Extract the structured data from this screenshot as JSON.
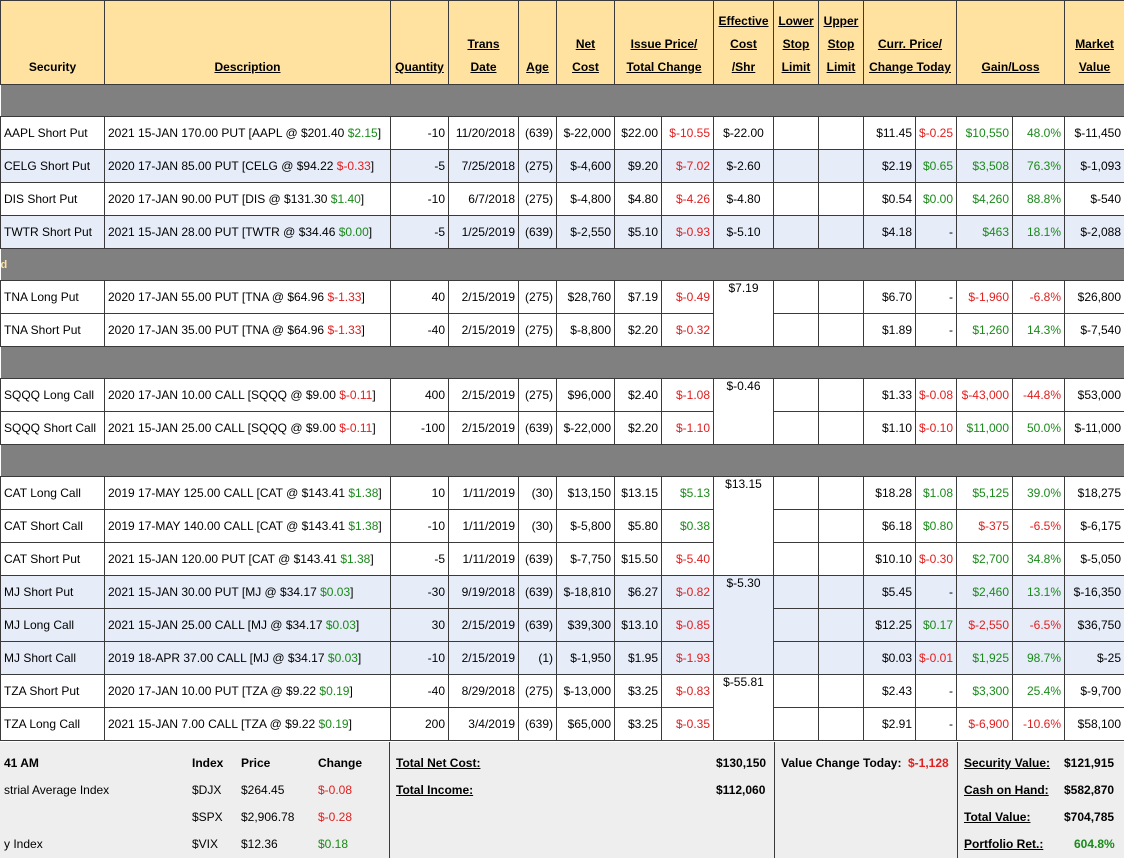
{
  "headers": {
    "security": "Security",
    "description": "Description",
    "quantity": "Quantity",
    "trans_date": [
      "Trans",
      "Date"
    ],
    "age": "Age",
    "net_cost": [
      "Net",
      "Cost"
    ],
    "issue_price": [
      "Issue Price/",
      "Total Change"
    ],
    "effective_cost": [
      "Effective",
      "Cost",
      "/Shr"
    ],
    "lower_stop": [
      "Lower",
      "Stop",
      "Limit"
    ],
    "upper_stop": [
      "Upper",
      "Stop",
      "Limit"
    ],
    "curr_price": [
      "Curr. Price/",
      "Change Today"
    ],
    "gain_loss": "Gain/Loss",
    "market_value": [
      "Market",
      "Value"
    ]
  },
  "separators": [
    "",
    "d",
    "",
    ""
  ],
  "rows": [
    {
      "security": "AAPL Short Put",
      "desc": "2021 15-JAN 170.00 PUT [AAPL @ $201.40",
      "desc_chg": "$2.15",
      "desc_chg_cls": "pos",
      "qty": "-10",
      "date": "11/20/2018",
      "age": "(639)",
      "net": "$-22,000",
      "issue": "$22.00",
      "tchg": "$-10.55",
      "tchg_cls": "neg",
      "eff": "$-22.00",
      "curr": "$11.45",
      "today": "$-0.25",
      "today_cls": "neg",
      "gl": "$10,550",
      "gl_cls": "pos",
      "glpct": "48.0%",
      "glpct_cls": "pos",
      "mv": "$-11,450",
      "alt": false
    },
    {
      "security": "CELG Short Put",
      "desc": "2020 17-JAN 85.00 PUT [CELG @ $94.22",
      "desc_chg": "$-0.33",
      "desc_chg_cls": "neg",
      "qty": "-5",
      "date": "7/25/2018",
      "age": "(275)",
      "net": "$-4,600",
      "issue": "$9.20",
      "tchg": "$-7.02",
      "tchg_cls": "neg",
      "eff": "$-2.60",
      "curr": "$2.19",
      "today": "$0.65",
      "today_cls": "pos",
      "gl": "$3,508",
      "gl_cls": "pos",
      "glpct": "76.3%",
      "glpct_cls": "pos",
      "mv": "$-1,093",
      "alt": true
    },
    {
      "security": "DIS Short Put",
      "desc": "2020 17-JAN 90.00 PUT [DIS @ $131.30",
      "desc_chg": "$1.40",
      "desc_chg_cls": "pos",
      "qty": "-10",
      "date": "6/7/2018",
      "age": "(275)",
      "net": "$-4,800",
      "issue": "$4.80",
      "tchg": "$-4.26",
      "tchg_cls": "neg",
      "eff": "$-4.80",
      "curr": "$0.54",
      "today": "$0.00",
      "today_cls": "pos",
      "gl": "$4,260",
      "gl_cls": "pos",
      "glpct": "88.8%",
      "glpct_cls": "pos",
      "mv": "$-540",
      "alt": false
    },
    {
      "security": "TWTR Short Put",
      "desc": "2021 15-JAN 28.00 PUT [TWTR @ $34.46",
      "desc_chg": "$0.00",
      "desc_chg_cls": "pos",
      "qty": "-5",
      "date": "1/25/2019",
      "age": "(639)",
      "net": "$-2,550",
      "issue": "$5.10",
      "tchg": "$-0.93",
      "tchg_cls": "neg",
      "eff": "$-5.10",
      "curr": "$4.18",
      "today": "-",
      "today_cls": "",
      "gl": "$463",
      "gl_cls": "pos",
      "glpct": "18.1%",
      "glpct_cls": "pos",
      "mv": "$-2,088",
      "alt": true
    },
    {
      "security": "TNA Long Put",
      "desc": "2020 17-JAN 55.00 PUT [TNA @ $64.96",
      "desc_chg": "$-1.33",
      "desc_chg_cls": "neg",
      "qty": "40",
      "date": "2/15/2019",
      "age": "(275)",
      "net": "$28,760",
      "issue": "$7.19",
      "tchg": "$-0.49",
      "tchg_cls": "neg",
      "eff": "$7.19",
      "curr": "$6.70",
      "today": "-",
      "today_cls": "",
      "gl": "$-1,960",
      "gl_cls": "neg",
      "glpct": "-6.8%",
      "glpct_cls": "neg",
      "mv": "$26,800",
      "alt": false
    },
    {
      "security": "TNA Short Put",
      "desc": "2020 17-JAN 35.00 PUT [TNA @ $64.96",
      "desc_chg": "$-1.33",
      "desc_chg_cls": "neg",
      "qty": "-40",
      "date": "2/15/2019",
      "age": "(275)",
      "net": "$-8,800",
      "issue": "$2.20",
      "tchg": "$-0.32",
      "tchg_cls": "neg",
      "eff": "",
      "curr": "$1.89",
      "today": "-",
      "today_cls": "",
      "gl": "$1,260",
      "gl_cls": "pos",
      "glpct": "14.3%",
      "glpct_cls": "pos",
      "mv": "$-7,540",
      "alt": false
    },
    {
      "security": "SQQQ Long Call",
      "desc": "2020 17-JAN 10.00 CALL [SQQQ @ $9.00",
      "desc_chg": "$-0.11",
      "desc_chg_cls": "neg",
      "qty": "400",
      "date": "2/15/2019",
      "age": "(275)",
      "net": "$96,000",
      "issue": "$2.40",
      "tchg": "$-1.08",
      "tchg_cls": "neg",
      "eff": "$-0.46",
      "curr": "$1.33",
      "today": "$-0.08",
      "today_cls": "neg",
      "gl": "$-43,000",
      "gl_cls": "neg",
      "glpct": "-44.8%",
      "glpct_cls": "neg",
      "mv": "$53,000",
      "alt": false
    },
    {
      "security": "SQQQ Short Call",
      "desc": "2021 15-JAN 25.00 CALL [SQQQ @ $9.00",
      "desc_chg": "$-0.11",
      "desc_chg_cls": "neg",
      "qty": "-100",
      "date": "2/15/2019",
      "age": "(639)",
      "net": "$-22,000",
      "issue": "$2.20",
      "tchg": "$-1.10",
      "tchg_cls": "neg",
      "eff": "",
      "curr": "$1.10",
      "today": "$-0.10",
      "today_cls": "neg",
      "gl": "$11,000",
      "gl_cls": "pos",
      "glpct": "50.0%",
      "glpct_cls": "pos",
      "mv": "$-11,000",
      "alt": false
    },
    {
      "security": "CAT Long Call",
      "desc": "2019 17-MAY 125.00 CALL [CAT @ $143.41",
      "desc_chg": "$1.38",
      "desc_chg_cls": "pos",
      "qty": "10",
      "date": "1/11/2019",
      "age": "(30)",
      "net": "$13,150",
      "issue": "$13.15",
      "tchg": "$5.13",
      "tchg_cls": "pos",
      "eff": "$13.15",
      "curr": "$18.28",
      "today": "$1.08",
      "today_cls": "pos",
      "gl": "$5,125",
      "gl_cls": "pos",
      "glpct": "39.0%",
      "glpct_cls": "pos",
      "mv": "$18,275",
      "alt": false
    },
    {
      "security": "CAT Short Call",
      "desc": "2019 17-MAY 140.00 CALL [CAT @ $143.41",
      "desc_chg": "$1.38",
      "desc_chg_cls": "pos",
      "qty": "-10",
      "date": "1/11/2019",
      "age": "(30)",
      "net": "$-5,800",
      "issue": "$5.80",
      "tchg": "$0.38",
      "tchg_cls": "pos",
      "eff": "",
      "curr": "$6.18",
      "today": "$0.80",
      "today_cls": "pos",
      "gl": "$-375",
      "gl_cls": "neg",
      "glpct": "-6.5%",
      "glpct_cls": "neg",
      "mv": "$-6,175",
      "alt": false
    },
    {
      "security": "CAT Short Put",
      "desc": "2021 15-JAN 120.00 PUT [CAT @ $143.41",
      "desc_chg": "$1.38",
      "desc_chg_cls": "pos",
      "qty": "-5",
      "date": "1/11/2019",
      "age": "(639)",
      "net": "$-7,750",
      "issue": "$15.50",
      "tchg": "$-5.40",
      "tchg_cls": "neg",
      "eff": "",
      "curr": "$10.10",
      "today": "$-0.30",
      "today_cls": "neg",
      "gl": "$2,700",
      "gl_cls": "pos",
      "glpct": "34.8%",
      "glpct_cls": "pos",
      "mv": "$-5,050",
      "alt": false
    },
    {
      "security": "MJ Short Put",
      "desc": "2021 15-JAN 30.00 PUT [MJ @ $34.17",
      "desc_chg": "$0.03",
      "desc_chg_cls": "pos",
      "qty": "-30",
      "date": "9/19/2018",
      "age": "(639)",
      "net": "$-18,810",
      "issue": "$6.27",
      "tchg": "$-0.82",
      "tchg_cls": "neg",
      "eff": "$-5.30",
      "curr": "$5.45",
      "today": "-",
      "today_cls": "",
      "gl": "$2,460",
      "gl_cls": "pos",
      "glpct": "13.1%",
      "glpct_cls": "pos",
      "mv": "$-16,350",
      "alt": true
    },
    {
      "security": "MJ Long Call",
      "desc": "2021 15-JAN 25.00 CALL [MJ @ $34.17",
      "desc_chg": "$0.03",
      "desc_chg_cls": "pos",
      "qty": "30",
      "date": "2/15/2019",
      "age": "(639)",
      "net": "$39,300",
      "issue": "$13.10",
      "tchg": "$-0.85",
      "tchg_cls": "neg",
      "eff": "",
      "curr": "$12.25",
      "today": "$0.17",
      "today_cls": "pos",
      "gl": "$-2,550",
      "gl_cls": "neg",
      "glpct": "-6.5%",
      "glpct_cls": "neg",
      "mv": "$36,750",
      "alt": true
    },
    {
      "security": "MJ Short Call",
      "desc": "2019 18-APR 37.00 CALL [MJ @ $34.17",
      "desc_chg": "$0.03",
      "desc_chg_cls": "pos",
      "qty": "-10",
      "date": "2/15/2019",
      "age": "(1)",
      "net": "$-1,950",
      "issue": "$1.95",
      "tchg": "$-1.93",
      "tchg_cls": "neg",
      "eff": "",
      "curr": "$0.03",
      "today": "$-0.01",
      "today_cls": "neg",
      "gl": "$1,925",
      "gl_cls": "pos",
      "glpct": "98.7%",
      "glpct_cls": "pos",
      "mv": "$-25",
      "alt": true
    },
    {
      "security": "TZA Short Put",
      "desc": "2020 17-JAN 10.00 PUT [TZA @ $9.22",
      "desc_chg": "$0.19",
      "desc_chg_cls": "pos",
      "qty": "-40",
      "date": "8/29/2018",
      "age": "(275)",
      "net": "$-13,000",
      "issue": "$3.25",
      "tchg": "$-0.83",
      "tchg_cls": "neg",
      "eff": "$-55.81",
      "curr": "$2.43",
      "today": "-",
      "today_cls": "",
      "gl": "$3,300",
      "gl_cls": "pos",
      "glpct": "25.4%",
      "glpct_cls": "pos",
      "mv": "$-9,700",
      "alt": false
    },
    {
      "security": "TZA Long Call",
      "desc": "2021 15-JAN 7.00 CALL [TZA @ $9.22",
      "desc_chg": "$0.19",
      "desc_chg_cls": "pos",
      "qty": "200",
      "date": "3/4/2019",
      "age": "(639)",
      "net": "$65,000",
      "issue": "$3.25",
      "tchg": "$-0.35",
      "tchg_cls": "neg",
      "eff": "",
      "curr": "$2.91",
      "today": "-",
      "today_cls": "",
      "gl": "$-6,900",
      "gl_cls": "neg",
      "glpct": "-10.6%",
      "glpct_cls": "neg",
      "mv": "$58,100",
      "alt": false
    }
  ],
  "footer": {
    "time": "41 AM",
    "index_header": "Index",
    "price_header": "Price",
    "change_header": "Change",
    "indices": [
      {
        "name": "strial Average Index",
        "symbol": "$DJX",
        "price": "$264.45",
        "change": "$-0.08",
        "cls": "neg"
      },
      {
        "name": "",
        "symbol": "$SPX",
        "price": "$2,906.78",
        "change": "$-0.28",
        "cls": "neg"
      },
      {
        "name": "y Index",
        "symbol": "$VIX",
        "price": "$12.36",
        "change": "$0.18",
        "cls": "pos"
      }
    ],
    "total_net_cost_label": "Total Net Cost:",
    "total_net_cost": "$130,150",
    "total_income_label": "Total Income:",
    "total_income": "$112,060",
    "value_change_label": "Value Change Today:",
    "value_change": "$-1,128",
    "security_value_label": "Security Value:",
    "security_value": "$121,915",
    "cash_label": "Cash on Hand:",
    "cash": "$582,870",
    "total_value_label": "Total Value:",
    "total_value": "$704,785",
    "portfolio_ret_label": "Portfolio Ret.:",
    "portfolio_ret": "604.8%"
  },
  "colors": {
    "header_bg": "#ffe2a0",
    "separator": "#808080",
    "alt_row": "#e6ecf8",
    "negative": "#e02020",
    "positive": "#1a8a1a"
  }
}
